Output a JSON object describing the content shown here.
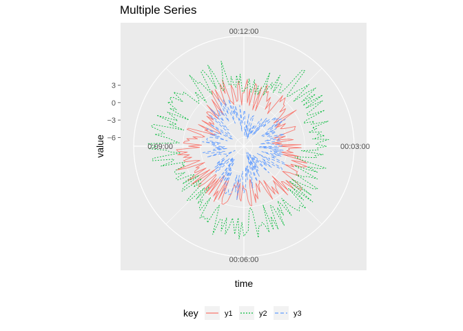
{
  "chart_data": {
    "type": "line",
    "coord": "polar",
    "title": "Multiple Series",
    "xlabel": "time",
    "ylabel": "value",
    "x_ticks": [
      "00:12:00",
      "00:03:00",
      "00:06:00",
      "0:09:00"
    ],
    "x_range_seconds": [
      0,
      720
    ],
    "y_ticks": [
      3,
      0,
      -3,
      -6
    ],
    "ylim": [
      -7.5,
      11.5
    ],
    "grid": true,
    "legend": {
      "title": "key",
      "position": "bottom",
      "entries": [
        "y1",
        "y2",
        "y3"
      ]
    },
    "series": [
      {
        "name": "y1",
        "color": "#F8766D",
        "dash": "solid",
        "mean": 1.2,
        "spread": 2.2,
        "noise": 1.6
      },
      {
        "name": "y2",
        "color": "#00BA38",
        "dash": "dotted",
        "mean": 5.2,
        "spread": 2.0,
        "noise": 1.8
      },
      {
        "name": "y3",
        "color": "#619CFF",
        "dash": "dashed",
        "mean": -2.5,
        "spread": 2.3,
        "noise": 1.7
      }
    ]
  },
  "colors": {
    "panel": "#EBEBEB",
    "grid": "#FFFFFF",
    "outer_ring": "#FFFFFF"
  }
}
